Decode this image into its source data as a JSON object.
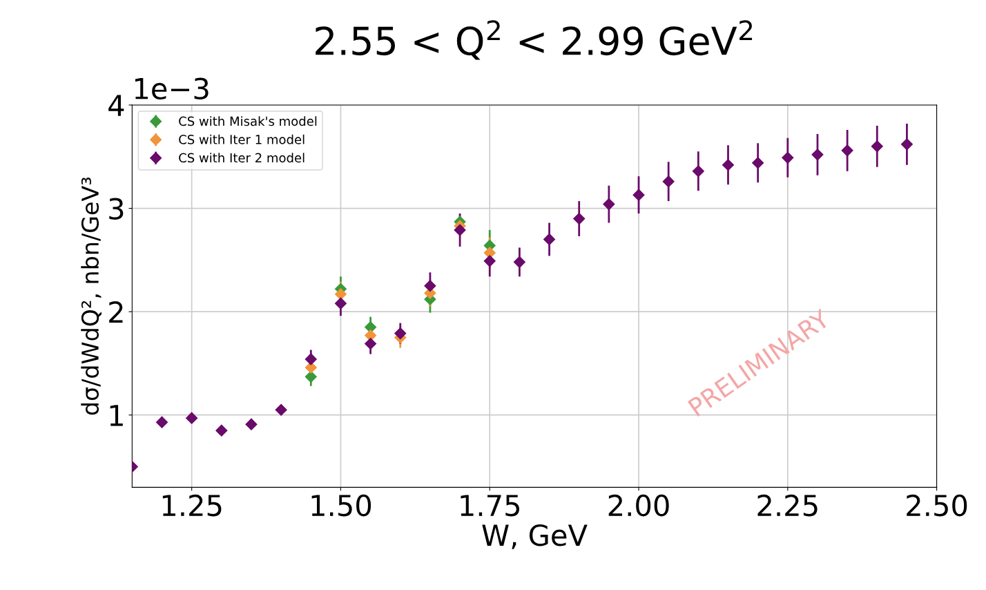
{
  "chart_data": {
    "type": "scatter",
    "title": "2.55 < Q$^{2}$ < 2.99 GeV$^{2}$",
    "xlabel": "W, GeV",
    "ylabel": "dσ/dWdQ², nbn/GeV³",
    "annotations": [
      "1e−3",
      "PRELIMINARY"
    ],
    "x": [
      1.15,
      1.2,
      1.25,
      1.3,
      1.35,
      1.4,
      1.45,
      1.5,
      1.55,
      1.6,
      1.65,
      1.7,
      1.75,
      1.8,
      1.85,
      1.9,
      1.95,
      2.0,
      2.05,
      2.1,
      2.15,
      2.2,
      2.25,
      2.3,
      2.35,
      2.4,
      2.45
    ],
    "series": [
      {
        "name": "CS with Misak's model",
        "color": "#3a9a3a",
        "values": [
          null,
          null,
          null,
          null,
          null,
          null,
          1.37,
          2.22,
          1.85,
          null,
          2.12,
          2.87,
          2.64,
          null,
          null,
          null,
          null,
          null,
          null,
          null,
          null,
          null,
          null,
          null,
          null,
          null,
          null
        ],
        "errors": [
          null,
          null,
          null,
          null,
          null,
          null,
          0.09,
          0.12,
          0.1,
          null,
          0.13,
          null,
          0.15,
          null,
          null,
          null,
          null,
          null,
          null,
          null,
          null,
          null,
          null,
          null,
          null,
          null,
          null
        ]
      },
      {
        "name": "CS with Iter 1 model",
        "color": "#f0953a",
        "values": [
          null,
          null,
          null,
          null,
          null,
          null,
          1.46,
          2.17,
          1.77,
          1.75,
          2.18,
          2.83,
          2.57,
          null,
          null,
          null,
          null,
          null,
          null,
          null,
          null,
          null,
          null,
          null,
          null,
          null,
          null
        ],
        "errors": [
          null,
          null,
          null,
          null,
          null,
          null,
          null,
          0.12,
          null,
          0.1,
          0.13,
          null,
          0.15,
          null,
          null,
          null,
          null,
          null,
          null,
          null,
          null,
          null,
          null,
          null,
          null,
          null,
          null
        ]
      },
      {
        "name": "CS with Iter 2 model",
        "color": "#6a0a6a",
        "values": [
          0.5,
          0.93,
          0.97,
          0.85,
          0.91,
          1.05,
          1.54,
          2.08,
          1.69,
          1.79,
          2.25,
          2.79,
          2.49,
          2.48,
          2.7,
          2.9,
          3.04,
          3.13,
          3.26,
          3.36,
          3.42,
          3.44,
          3.49,
          3.52,
          3.56,
          3.6,
          3.62
        ],
        "errors": [
          0.03,
          0.05,
          0.05,
          0.04,
          0.05,
          0.05,
          0.09,
          0.12,
          0.1,
          0.1,
          0.13,
          0.16,
          0.15,
          0.14,
          0.16,
          0.17,
          0.18,
          0.18,
          0.19,
          0.19,
          0.19,
          0.19,
          0.19,
          0.2,
          0.2,
          0.2,
          0.2
        ]
      }
    ],
    "xlim": [
      1.15,
      2.5
    ],
    "ylim": [
      0.3,
      4.0
    ],
    "xticks": [
      {
        "value": 1.25,
        "label": "1.25"
      },
      {
        "value": 1.5,
        "label": "1.50"
      },
      {
        "value": 1.75,
        "label": "1.75"
      },
      {
        "value": 2.0,
        "label": "2.00"
      },
      {
        "value": 2.25,
        "label": "2.25"
      },
      {
        "value": 2.5,
        "label": "2.50"
      }
    ],
    "yticks": [
      1,
      2,
      3,
      4
    ],
    "grid": true,
    "legend": "top left",
    "marker": "diamond"
  }
}
